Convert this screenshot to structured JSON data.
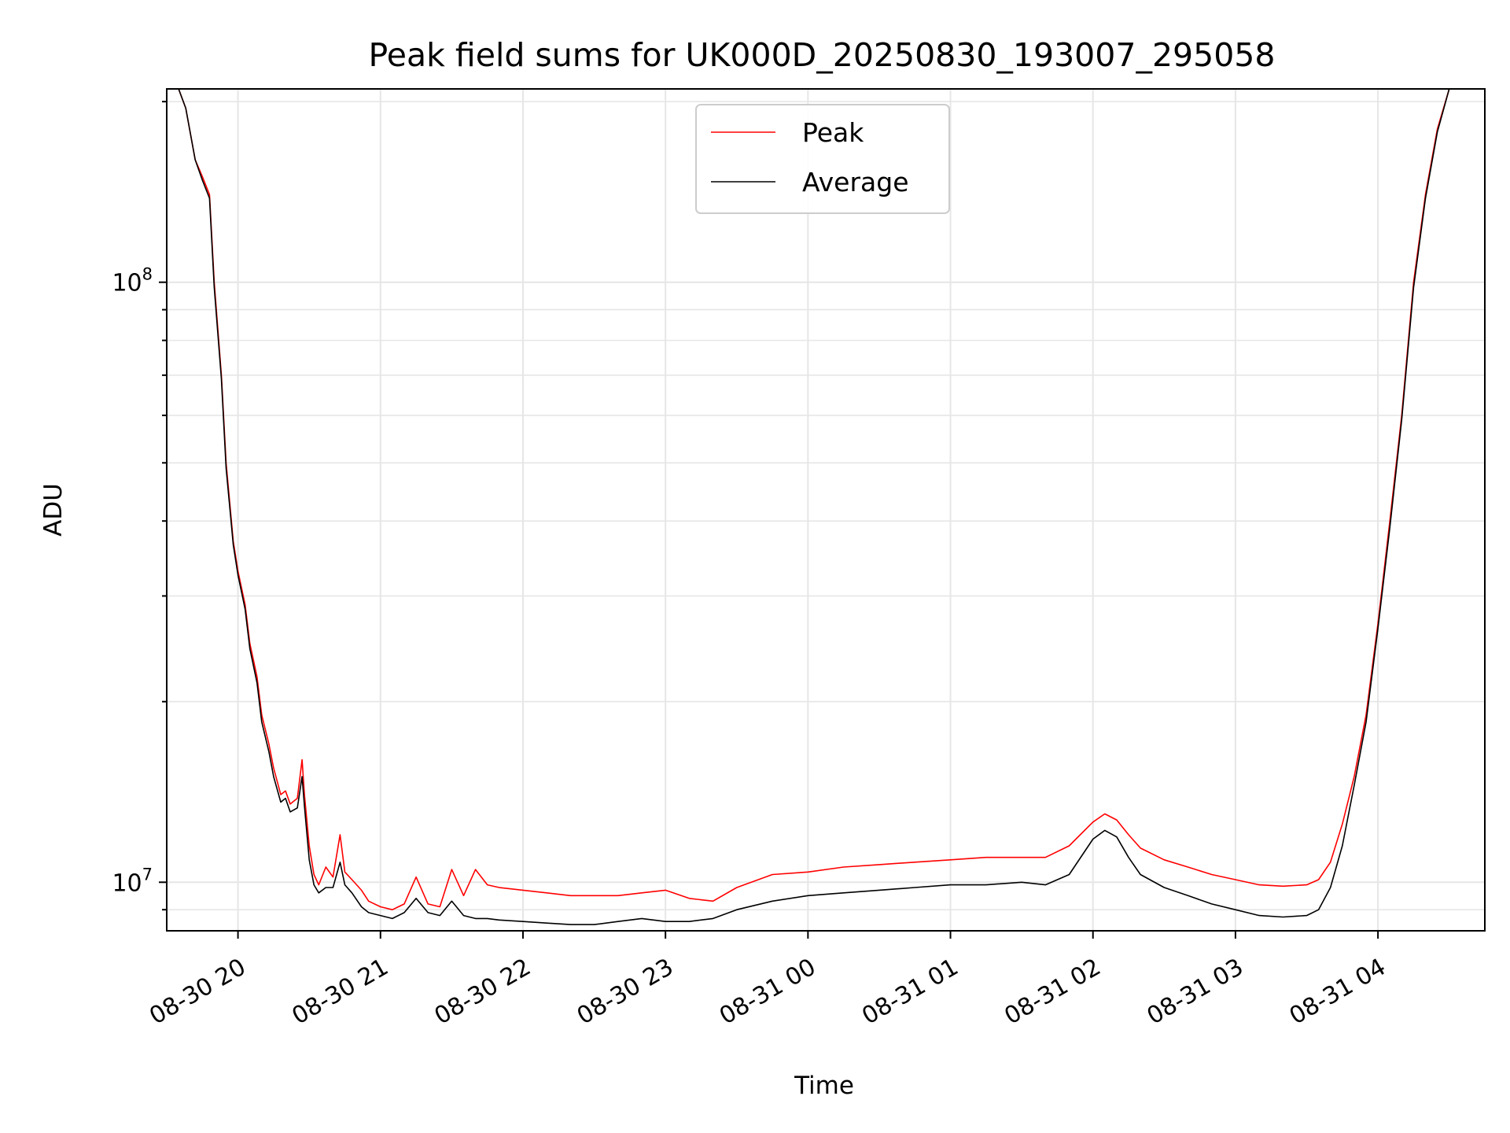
{
  "chart_data": {
    "type": "line",
    "title": "Peak field sums for UK000D_20250830_193007_295058",
    "xlabel": "Time",
    "ylabel": "ADU",
    "yscale": "log",
    "ylim": [
      8300000,
      210000000
    ],
    "xlim": [
      "2025-08-30 19:30",
      "2025-08-31 04:45"
    ],
    "grid": true,
    "legend_position": "top-center",
    "x_ticks": [
      "08-30 20",
      "08-30 21",
      "08-30 22",
      "08-30 23",
      "08-31 00",
      "08-31 01",
      "08-31 02",
      "08-31 03",
      "08-31 04"
    ],
    "x_tick_times": [
      "2025-08-30 20:00",
      "2025-08-30 21:00",
      "2025-08-30 22:00",
      "2025-08-30 23:00",
      "2025-08-31 00:00",
      "2025-08-31 01:00",
      "2025-08-31 02:00",
      "2025-08-31 03:00",
      "2025-08-31 04:00"
    ],
    "y_ticks": [
      {
        "value": 10000000,
        "base": "10",
        "exp": "7"
      },
      {
        "value": 100000000,
        "base": "10",
        "exp": "8"
      }
    ],
    "series": [
      {
        "name": "Peak",
        "color": "#ff0000",
        "x": [
          "2025-08-30 19:35",
          "2025-08-30 19:38",
          "2025-08-30 19:42",
          "2025-08-30 19:45",
          "2025-08-30 19:48",
          "2025-08-30 19:50",
          "2025-08-30 19:53",
          "2025-08-30 19:55",
          "2025-08-30 19:58",
          "2025-08-30 20:00",
          "2025-08-30 20:03",
          "2025-08-30 20:05",
          "2025-08-30 20:08",
          "2025-08-30 20:10",
          "2025-08-30 20:13",
          "2025-08-30 20:15",
          "2025-08-30 20:18",
          "2025-08-30 20:20",
          "2025-08-30 20:22",
          "2025-08-30 20:25",
          "2025-08-30 20:27",
          "2025-08-30 20:28",
          "2025-08-30 20:30",
          "2025-08-30 20:32",
          "2025-08-30 20:34",
          "2025-08-30 20:37",
          "2025-08-30 20:40",
          "2025-08-30 20:43",
          "2025-08-30 20:45",
          "2025-08-30 20:48",
          "2025-08-30 20:52",
          "2025-08-30 20:55",
          "2025-08-30 21:00",
          "2025-08-30 21:05",
          "2025-08-30 21:10",
          "2025-08-30 21:15",
          "2025-08-30 21:20",
          "2025-08-30 21:25",
          "2025-08-30 21:30",
          "2025-08-30 21:35",
          "2025-08-30 21:40",
          "2025-08-30 21:45",
          "2025-08-30 21:50",
          "2025-08-30 22:00",
          "2025-08-30 22:10",
          "2025-08-30 22:20",
          "2025-08-30 22:30",
          "2025-08-30 22:40",
          "2025-08-30 22:50",
          "2025-08-30 23:00",
          "2025-08-30 23:10",
          "2025-08-30 23:20",
          "2025-08-30 23:30",
          "2025-08-30 23:45",
          "2025-08-31 00:00",
          "2025-08-31 00:15",
          "2025-08-31 00:30",
          "2025-08-31 00:45",
          "2025-08-31 01:00",
          "2025-08-31 01:15",
          "2025-08-31 01:30",
          "2025-08-31 01:40",
          "2025-08-31 01:50",
          "2025-08-31 02:00",
          "2025-08-31 02:05",
          "2025-08-31 02:10",
          "2025-08-31 02:15",
          "2025-08-31 02:20",
          "2025-08-31 02:30",
          "2025-08-31 02:40",
          "2025-08-31 02:50",
          "2025-08-31 03:00",
          "2025-08-31 03:10",
          "2025-08-31 03:20",
          "2025-08-31 03:30",
          "2025-08-31 03:35",
          "2025-08-31 03:40",
          "2025-08-31 03:45",
          "2025-08-31 03:50",
          "2025-08-31 03:55",
          "2025-08-31 04:00",
          "2025-08-31 04:05",
          "2025-08-31 04:10",
          "2025-08-31 04:15",
          "2025-08-31 04:20",
          "2025-08-31 04:25",
          "2025-08-31 04:30",
          "2025-08-31 04:35"
        ],
        "values": [
          210000000,
          195000000,
          160000000,
          150000000,
          140000000,
          100000000,
          70000000,
          50000000,
          37000000,
          33000000,
          29000000,
          25000000,
          22000000,
          19000000,
          17000000,
          15500000,
          14000000,
          14200000,
          13500000,
          13800000,
          16000000,
          14000000,
          11500000,
          10300000,
          9900000,
          10600000,
          10200000,
          12000000,
          10400000,
          10100000,
          9700000,
          9300000,
          9100000,
          9000000,
          9200000,
          10200000,
          9200000,
          9100000,
          10500000,
          9500000,
          10500000,
          9900000,
          9800000,
          9700000,
          9600000,
          9500000,
          9500000,
          9500000,
          9600000,
          9700000,
          9400000,
          9300000,
          9800000,
          10300000,
          10400000,
          10600000,
          10700000,
          10800000,
          10900000,
          11000000,
          11000000,
          11000000,
          11500000,
          12600000,
          13000000,
          12700000,
          12000000,
          11400000,
          10900000,
          10600000,
          10300000,
          10100000,
          9900000,
          9850000,
          9900000,
          10100000,
          10800000,
          12500000,
          15000000,
          19000000,
          27000000,
          40000000,
          60000000,
          100000000,
          140000000,
          180000000,
          210000000,
          210000000
        ]
      },
      {
        "name": "Average",
        "color": "#000000",
        "x": [
          "2025-08-30 19:35",
          "2025-08-30 19:38",
          "2025-08-30 19:42",
          "2025-08-30 19:45",
          "2025-08-30 19:48",
          "2025-08-30 19:50",
          "2025-08-30 19:53",
          "2025-08-30 19:55",
          "2025-08-30 19:58",
          "2025-08-30 20:00",
          "2025-08-30 20:03",
          "2025-08-30 20:05",
          "2025-08-30 20:08",
          "2025-08-30 20:10",
          "2025-08-30 20:13",
          "2025-08-30 20:15",
          "2025-08-30 20:18",
          "2025-08-30 20:20",
          "2025-08-30 20:22",
          "2025-08-30 20:25",
          "2025-08-30 20:27",
          "2025-08-30 20:28",
          "2025-08-30 20:30",
          "2025-08-30 20:32",
          "2025-08-30 20:34",
          "2025-08-30 20:37",
          "2025-08-30 20:40",
          "2025-08-30 20:43",
          "2025-08-30 20:45",
          "2025-08-30 20:48",
          "2025-08-30 20:52",
          "2025-08-30 20:55",
          "2025-08-30 21:00",
          "2025-08-30 21:05",
          "2025-08-30 21:10",
          "2025-08-30 21:15",
          "2025-08-30 21:20",
          "2025-08-30 21:25",
          "2025-08-30 21:30",
          "2025-08-30 21:35",
          "2025-08-30 21:40",
          "2025-08-30 21:45",
          "2025-08-30 21:50",
          "2025-08-30 22:00",
          "2025-08-30 22:10",
          "2025-08-30 22:20",
          "2025-08-30 22:30",
          "2025-08-30 22:40",
          "2025-08-30 22:50",
          "2025-08-30 23:00",
          "2025-08-30 23:10",
          "2025-08-30 23:20",
          "2025-08-30 23:30",
          "2025-08-30 23:45",
          "2025-08-31 00:00",
          "2025-08-31 00:15",
          "2025-08-31 00:30",
          "2025-08-31 00:45",
          "2025-08-31 01:00",
          "2025-08-31 01:15",
          "2025-08-31 01:30",
          "2025-08-31 01:40",
          "2025-08-31 01:50",
          "2025-08-31 02:00",
          "2025-08-31 02:05",
          "2025-08-31 02:10",
          "2025-08-31 02:15",
          "2025-08-31 02:20",
          "2025-08-31 02:30",
          "2025-08-31 02:40",
          "2025-08-31 02:50",
          "2025-08-31 03:00",
          "2025-08-31 03:10",
          "2025-08-31 03:20",
          "2025-08-31 03:30",
          "2025-08-31 03:35",
          "2025-08-31 03:40",
          "2025-08-31 03:45",
          "2025-08-31 03:50",
          "2025-08-31 03:55",
          "2025-08-31 04:00",
          "2025-08-31 04:05",
          "2025-08-31 04:10",
          "2025-08-31 04:15",
          "2025-08-31 04:20",
          "2025-08-31 04:25",
          "2025-08-31 04:30",
          "2025-08-31 04:35"
        ],
        "values": [
          210000000,
          195000000,
          160000000,
          148000000,
          138000000,
          98000000,
          69000000,
          49000000,
          36500000,
          32500000,
          28500000,
          24500000,
          21500000,
          18500000,
          16500000,
          15000000,
          13600000,
          13800000,
          13100000,
          13300000,
          15000000,
          13400000,
          10900000,
          9900000,
          9600000,
          9800000,
          9800000,
          10800000,
          9900000,
          9600000,
          9100000,
          8900000,
          8800000,
          8700000,
          8900000,
          9400000,
          8900000,
          8800000,
          9300000,
          8800000,
          8700000,
          8700000,
          8650000,
          8600000,
          8550000,
          8500000,
          8500000,
          8600000,
          8700000,
          8600000,
          8600000,
          8700000,
          9000000,
          9300000,
          9500000,
          9600000,
          9700000,
          9800000,
          9900000,
          9900000,
          10000000,
          9900000,
          10300000,
          11800000,
          12200000,
          11900000,
          11000000,
          10300000,
          9800000,
          9500000,
          9200000,
          9000000,
          8800000,
          8750000,
          8800000,
          9000000,
          9800000,
          11500000,
          14500000,
          18500000,
          26500000,
          39000000,
          59000000,
          98000000,
          138000000,
          178000000,
          210000000,
          210000000
        ]
      }
    ]
  }
}
